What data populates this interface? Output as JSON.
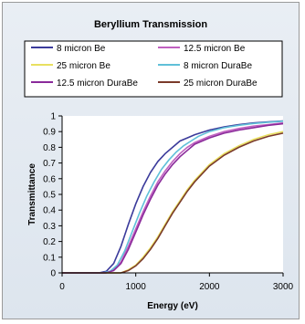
{
  "chart_data": {
    "type": "line",
    "title": "Beryllium Transmission",
    "xlabel": "Energy (eV)",
    "ylabel": "Transmittance",
    "xlim": [
      0,
      3000
    ],
    "ylim": [
      0,
      1
    ],
    "x_ticks": [
      0,
      1000,
      2000,
      3000
    ],
    "y_ticks": [
      0,
      0.1,
      0.2,
      0.3,
      0.4,
      0.5,
      0.6,
      0.7,
      0.8,
      0.9,
      1
    ],
    "grid": false,
    "legend": "top",
    "series": [
      {
        "name": "8 micron Be",
        "color": "#3b3b9b",
        "x": [
          500,
          600,
          700,
          800,
          900,
          1000,
          1100,
          1200,
          1300,
          1400,
          1500,
          1600,
          1700,
          1800,
          2000,
          2200,
          2400,
          2600,
          2800,
          3000
        ],
        "y": [
          0,
          0.01,
          0.06,
          0.17,
          0.31,
          0.44,
          0.55,
          0.64,
          0.71,
          0.76,
          0.8,
          0.84,
          0.86,
          0.88,
          0.91,
          0.93,
          0.945,
          0.955,
          0.962,
          0.968
        ]
      },
      {
        "name": "12.5 micron Be",
        "color": "#c060c0",
        "x": [
          600,
          700,
          800,
          900,
          1000,
          1100,
          1200,
          1300,
          1400,
          1500,
          1600,
          1700,
          1800,
          2000,
          2200,
          2400,
          2600,
          2800,
          3000
        ],
        "y": [
          0,
          0.02,
          0.07,
          0.17,
          0.28,
          0.39,
          0.49,
          0.58,
          0.65,
          0.71,
          0.76,
          0.8,
          0.83,
          0.87,
          0.9,
          0.92,
          0.935,
          0.945,
          0.955
        ]
      },
      {
        "name": "25 micron Be",
        "color": "#e8e060",
        "x": [
          800,
          900,
          1000,
          1100,
          1200,
          1300,
          1400,
          1500,
          1600,
          1700,
          1800,
          2000,
          2200,
          2400,
          2600,
          2800,
          3000
        ],
        "y": [
          0,
          0.02,
          0.05,
          0.1,
          0.16,
          0.23,
          0.31,
          0.39,
          0.46,
          0.53,
          0.59,
          0.69,
          0.76,
          0.81,
          0.85,
          0.88,
          0.9
        ]
      },
      {
        "name": "8 micron DuraBe",
        "color": "#60c0d8",
        "x": [
          550,
          650,
          750,
          850,
          950,
          1050,
          1150,
          1250,
          1350,
          1450,
          1550,
          1650,
          1750,
          1850,
          2000,
          2200,
          2400,
          2600,
          2800,
          3000
        ],
        "y": [
          0,
          0.01,
          0.05,
          0.14,
          0.26,
          0.38,
          0.49,
          0.58,
          0.66,
          0.72,
          0.77,
          0.81,
          0.84,
          0.87,
          0.9,
          0.925,
          0.94,
          0.952,
          0.96,
          0.966
        ]
      },
      {
        "name": "12.5 micron DuraBe",
        "color": "#8a2a9a",
        "x": [
          600,
          700,
          800,
          900,
          1000,
          1100,
          1200,
          1300,
          1400,
          1500,
          1600,
          1700,
          1800,
          2000,
          2200,
          2400,
          2600,
          2800,
          3000
        ],
        "y": [
          0,
          0.015,
          0.06,
          0.15,
          0.26,
          0.37,
          0.47,
          0.56,
          0.63,
          0.69,
          0.74,
          0.78,
          0.82,
          0.86,
          0.89,
          0.91,
          0.925,
          0.94,
          0.95
        ]
      },
      {
        "name": "25 micron DuraBe",
        "color": "#7a3a2a",
        "x": [
          800,
          900,
          1000,
          1100,
          1200,
          1300,
          1400,
          1500,
          1600,
          1700,
          1800,
          2000,
          2200,
          2400,
          2600,
          2800,
          3000
        ],
        "y": [
          0,
          0.015,
          0.045,
          0.09,
          0.15,
          0.22,
          0.3,
          0.38,
          0.45,
          0.52,
          0.58,
          0.68,
          0.75,
          0.8,
          0.84,
          0.87,
          0.89
        ]
      }
    ]
  }
}
